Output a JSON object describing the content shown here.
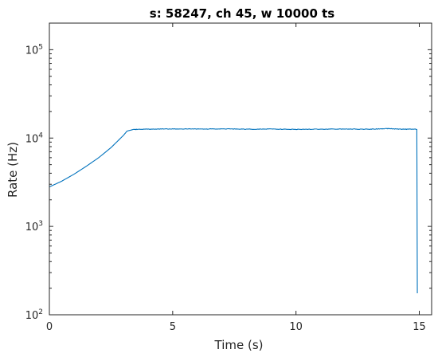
{
  "chart_data": {
    "type": "line",
    "title": "s: 58247, ch 45, w 10000 ts",
    "xlabel": "Time (s)",
    "ylabel": "Rate (Hz)",
    "xlim": [
      0,
      15.5
    ],
    "ylim": [
      100,
      200000
    ],
    "yscale": "log",
    "grid": false,
    "x_ticks": [
      {
        "value": 0,
        "label": "0"
      },
      {
        "value": 5,
        "label": "5"
      },
      {
        "value": 10,
        "label": "10"
      },
      {
        "value": 15,
        "label": "15"
      }
    ],
    "y_ticks": [
      {
        "value": 100,
        "base": "10",
        "exp": "2"
      },
      {
        "value": 1000,
        "base": "10",
        "exp": "3"
      },
      {
        "value": 10000,
        "base": "10",
        "exp": "4"
      },
      {
        "value": 100000,
        "base": "10",
        "exp": "5"
      }
    ],
    "series": [
      {
        "color": "#0072bd",
        "x": [
          0,
          0.5,
          1.0,
          1.5,
          2.0,
          2.5,
          3.0,
          3.15,
          3.4,
          4,
          5,
          6,
          7,
          8,
          9,
          10,
          11,
          12,
          13,
          13.7,
          14.3,
          14.85,
          14.9,
          14.92
        ],
        "y": [
          2800,
          3250,
          3900,
          4800,
          6000,
          7800,
          10700,
          12000,
          12500,
          12600,
          12700,
          12650,
          12700,
          12600,
          12650,
          12550,
          12600,
          12650,
          12600,
          12800,
          12600,
          12600,
          12500,
          175
        ]
      }
    ]
  }
}
